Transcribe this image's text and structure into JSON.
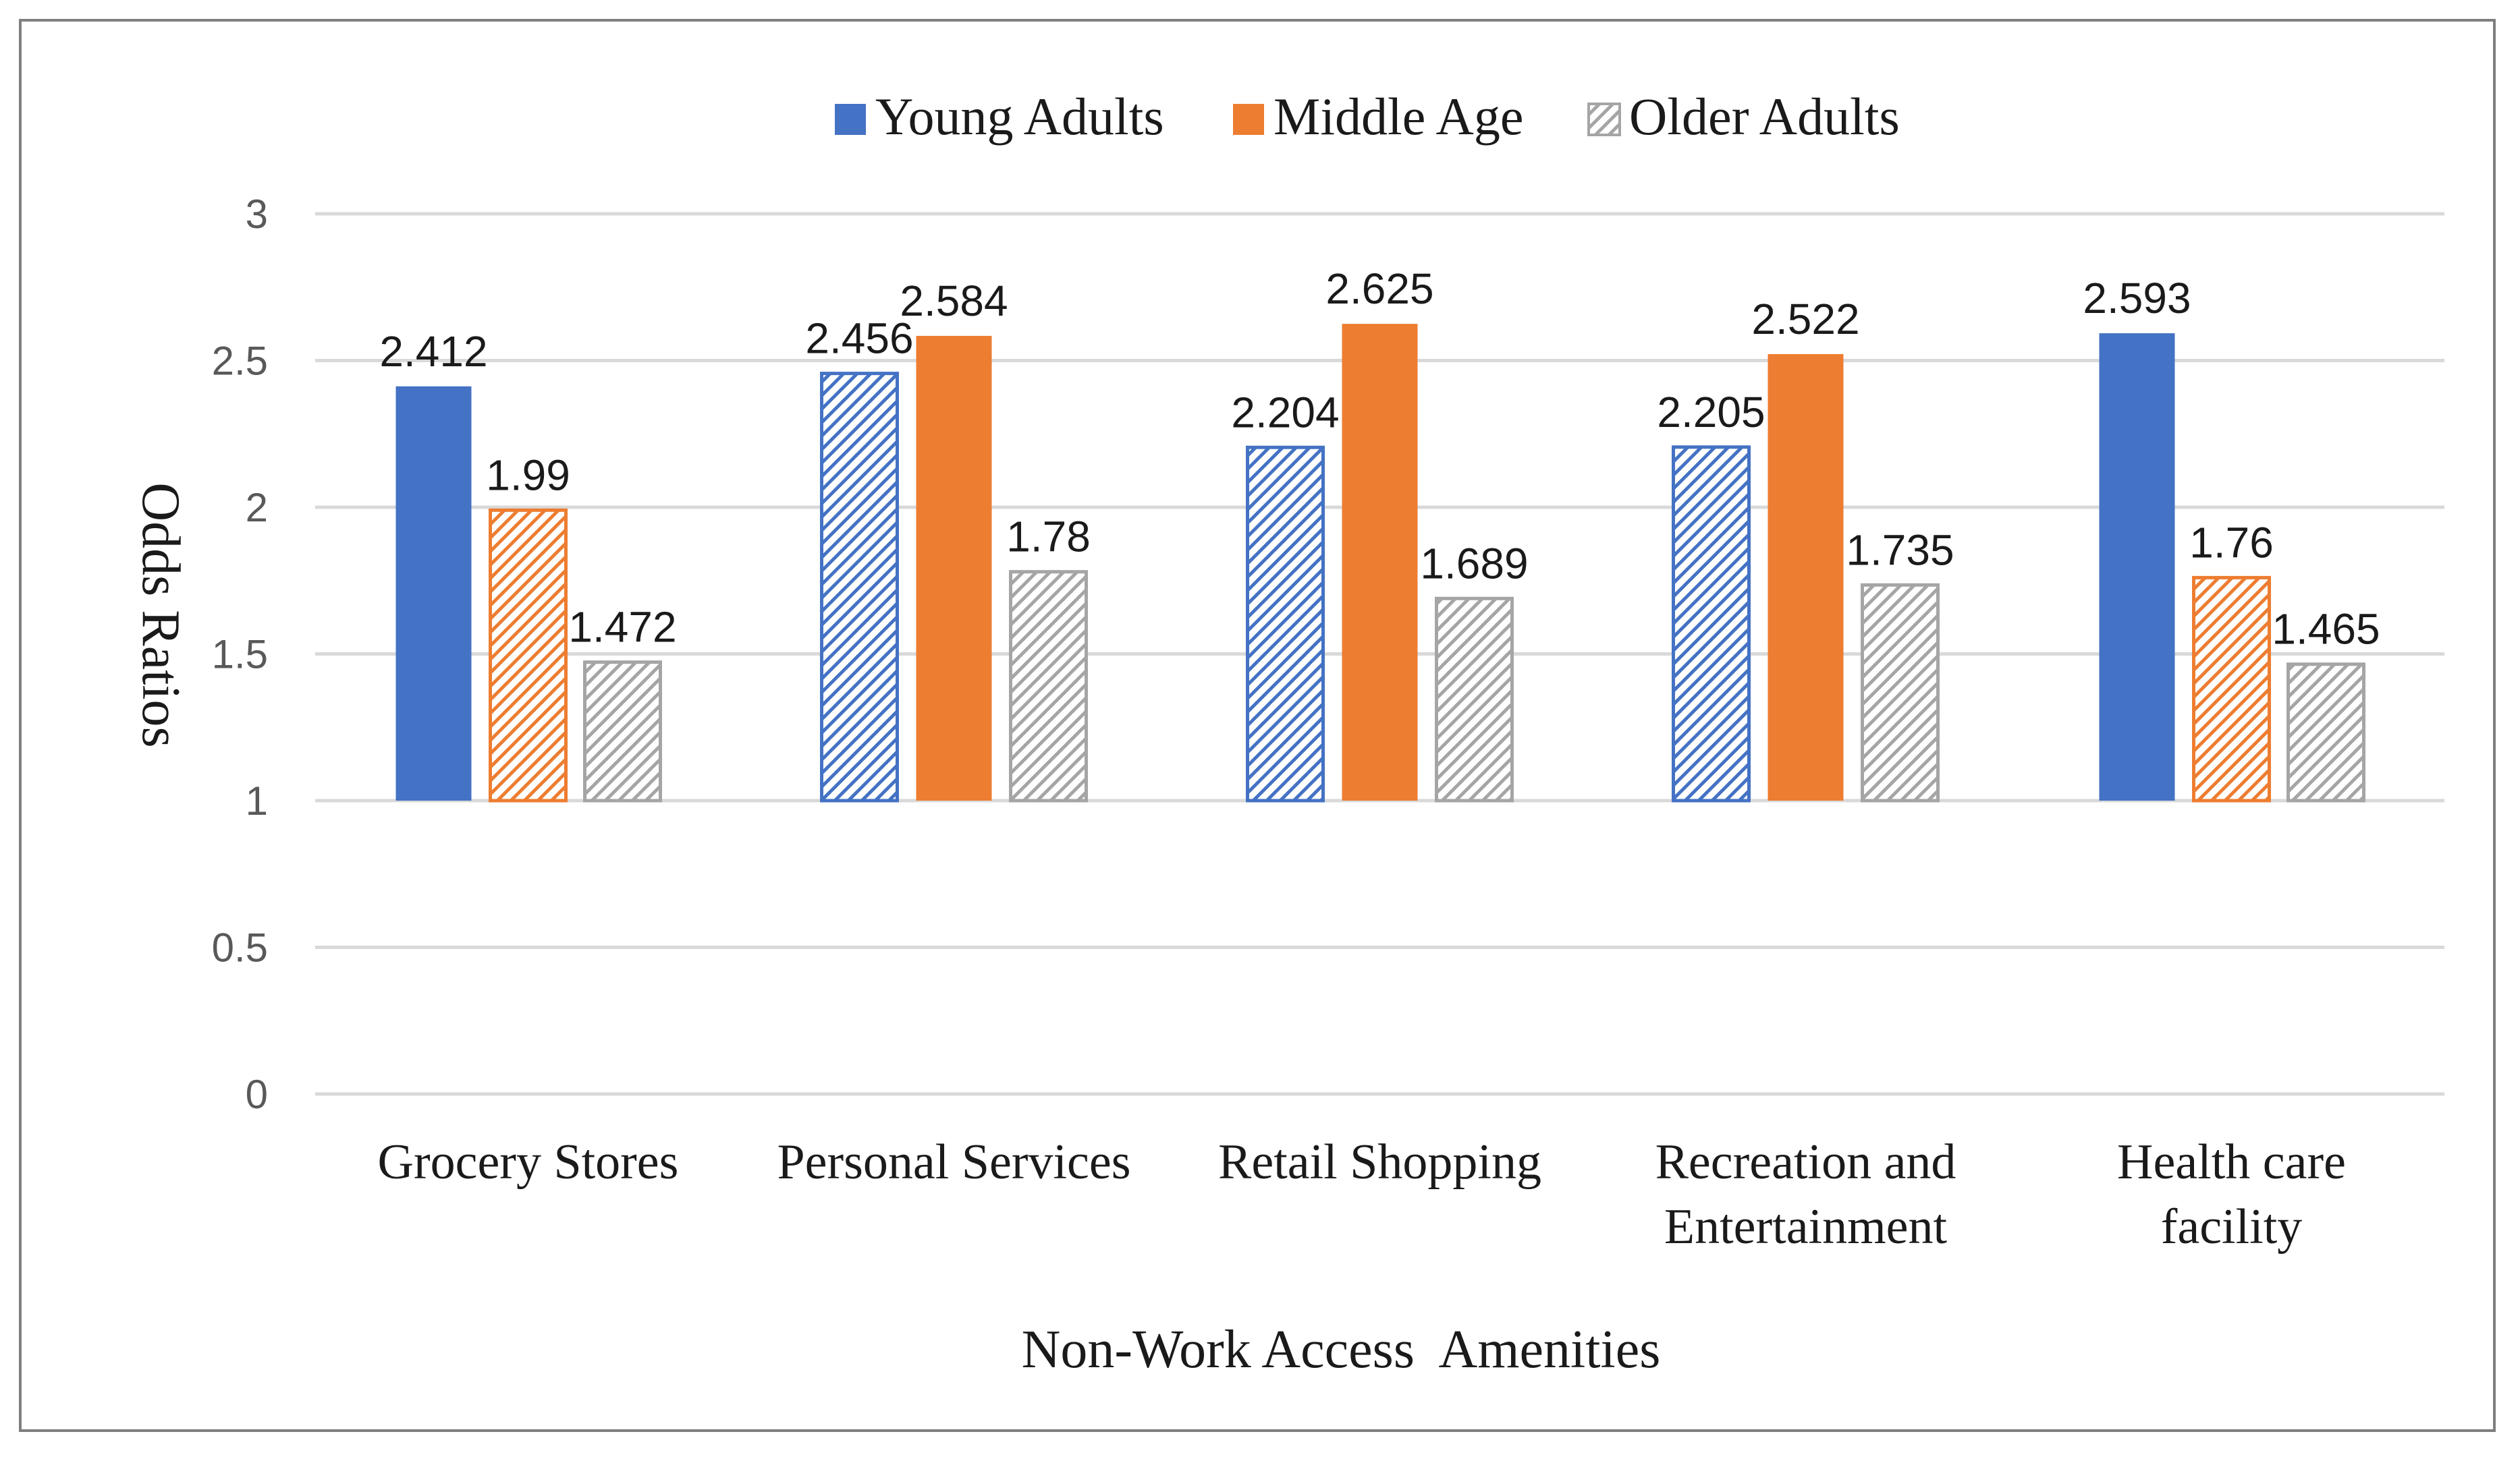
{
  "chart_data": {
    "type": "bar",
    "title": "",
    "xlabel": "Non-Work Access  Amenities",
    "ylabel": "Odds Ratios",
    "ylim": [
      0,
      3
    ],
    "yticks": [
      0,
      0.5,
      1,
      1.5,
      2,
      2.5,
      3
    ],
    "ytick_labels": [
      "0",
      "0.5",
      "1",
      "1.5",
      "2",
      "2.5",
      "3"
    ],
    "baseline": 1,
    "grid": true,
    "legend_position": "top-center",
    "categories": [
      [
        "Grocery Stores"
      ],
      [
        "Personal Services"
      ],
      [
        "Retail Shopping"
      ],
      [
        "Recreation and",
        "Entertainment"
      ],
      [
        "Health care",
        "facility"
      ]
    ],
    "series": [
      {
        "name": "Young Adults",
        "color": "#4472c4",
        "legend_fill": "solid",
        "values": [
          2.412,
          2.456,
          2.204,
          2.205,
          2.593
        ],
        "labels": [
          "2.412",
          "2.456",
          "2.204",
          "2.205",
          "2.593"
        ],
        "fills": [
          "solid",
          "hatched",
          "hatched",
          "hatched",
          "solid"
        ]
      },
      {
        "name": "Middle Age",
        "color": "#ed7d31",
        "legend_fill": "solid",
        "values": [
          1.99,
          2.584,
          2.625,
          2.522,
          1.76
        ],
        "labels": [
          "1.99",
          "2.584",
          "2.625",
          "2.522",
          "1.76"
        ],
        "fills": [
          "hatched",
          "solid",
          "solid",
          "solid",
          "hatched"
        ]
      },
      {
        "name": "Older Adults",
        "color": "#a5a5a5",
        "legend_fill": "hatched",
        "values": [
          1.472,
          1.78,
          1.689,
          1.735,
          1.465
        ],
        "labels": [
          "1.472",
          "1.78",
          "1.689",
          "1.735",
          "1.465"
        ],
        "fills": [
          "hatched",
          "hatched",
          "hatched",
          "hatched",
          "hatched"
        ]
      }
    ]
  }
}
